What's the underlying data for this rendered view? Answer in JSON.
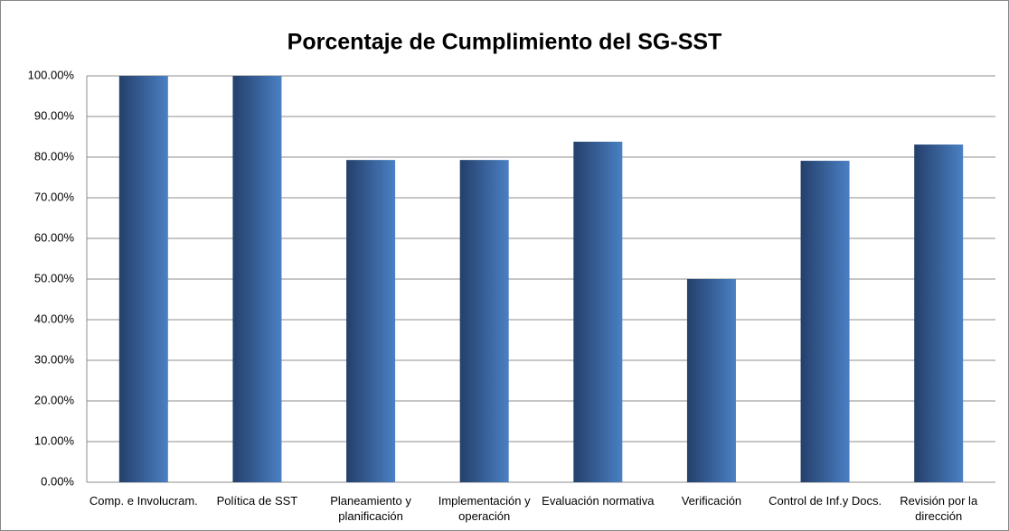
{
  "chart_data": {
    "type": "bar",
    "title": "Porcentaje de Cumplimiento del SG-SST",
    "categories": [
      "Comp. e Involucram.",
      "Política de SST",
      "Planeamiento y planificación",
      "Implementación y operación",
      "Evaluación normativa",
      "Verificación",
      "Control de Inf.y Docs.",
      "Revisión por la dirección"
    ],
    "values": [
      100,
      100,
      79.3,
      79.3,
      83.8,
      50,
      79.1,
      83.1
    ],
    "color": "#3a6aa8",
    "ylim": [
      0,
      100
    ],
    "yticks": [
      {
        "value": 0,
        "label": "0.00%"
      },
      {
        "value": 10,
        "label": "10.00%"
      },
      {
        "value": 20,
        "label": "20.00%"
      },
      {
        "value": 30,
        "label": "30.00%"
      },
      {
        "value": 40,
        "label": "40.00%"
      },
      {
        "value": 50,
        "label": "50.00%"
      },
      {
        "value": 60,
        "label": "60.00%"
      },
      {
        "value": 70,
        "label": "70.00%"
      },
      {
        "value": 80,
        "label": "80.00%"
      },
      {
        "value": 90,
        "label": "90.00%"
      },
      {
        "value": 100,
        "label": "100.00%"
      }
    ],
    "grid": true
  }
}
